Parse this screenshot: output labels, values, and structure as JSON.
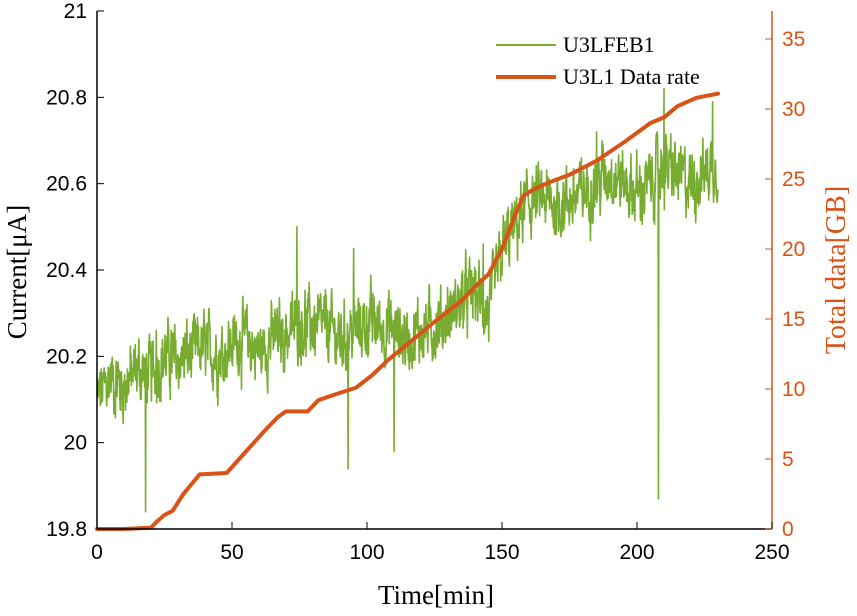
{
  "chart_data": {
    "type": "line",
    "x_axis": {
      "label": "Time[min]",
      "range": [
        0,
        250
      ],
      "ticks": [
        0,
        50,
        100,
        150,
        200,
        250
      ]
    },
    "y_axis_left": {
      "label": "Current[μA]",
      "range": [
        19.8,
        21
      ],
      "ticks": [
        "19.8",
        "20",
        "20.2",
        "20.4",
        "20.6",
        "20.8",
        "21"
      ],
      "color": "#000000"
    },
    "y_axis_right": {
      "label": "Total data[GB]",
      "range": [
        0,
        37
      ],
      "ticks": [
        0,
        5,
        10,
        15,
        20,
        25,
        30,
        35
      ],
      "color": "#D95319"
    },
    "grid": false,
    "legend_position": "top-right",
    "series": [
      {
        "name": "U3LFEB1",
        "axis": "left",
        "color": "#77AC30",
        "style": "noisy-line",
        "x": [
          0,
          5,
          10,
          15,
          20,
          25,
          30,
          35,
          40,
          45,
          50,
          55,
          60,
          65,
          70,
          75,
          80,
          85,
          90,
          95,
          100,
          105,
          110,
          115,
          120,
          125,
          130,
          135,
          140,
          145,
          150,
          155,
          160,
          165,
          170,
          175,
          180,
          185,
          190,
          195,
          200,
          205,
          210,
          215,
          220,
          225,
          230
        ],
        "y": [
          20.1,
          20.15,
          20.13,
          20.17,
          20.16,
          20.2,
          20.19,
          20.21,
          20.22,
          20.2,
          20.23,
          20.24,
          20.21,
          20.24,
          20.25,
          20.28,
          20.27,
          20.27,
          20.24,
          20.26,
          20.28,
          20.27,
          20.26,
          20.24,
          20.26,
          20.27,
          20.29,
          20.33,
          20.35,
          20.3,
          20.44,
          20.5,
          20.56,
          20.56,
          20.55,
          20.56,
          20.58,
          20.6,
          20.63,
          20.6,
          20.58,
          20.6,
          20.64,
          20.62,
          20.6,
          20.63,
          20.65
        ],
        "spikes": [
          {
            "x": 18,
            "y": 19.84
          },
          {
            "x": 22,
            "y": 20.26
          },
          {
            "x": 74,
            "y": 20.5
          },
          {
            "x": 93,
            "y": 19.94
          },
          {
            "x": 95,
            "y": 20.45
          },
          {
            "x": 110,
            "y": 19.98
          },
          {
            "x": 143,
            "y": 20.46
          },
          {
            "x": 185,
            "y": 20.72
          },
          {
            "x": 208,
            "y": 19.87
          },
          {
            "x": 210,
            "y": 20.82
          },
          {
            "x": 228,
            "y": 20.79
          }
        ]
      },
      {
        "name": "U3L1 Data rate",
        "axis": "right",
        "color": "#D95319",
        "x": [
          0,
          10,
          20,
          22,
          25,
          28,
          32,
          38,
          48,
          55,
          62,
          67,
          70,
          78,
          82,
          88,
          96,
          102,
          108,
          115,
          125,
          135,
          140,
          145,
          150,
          155,
          158,
          162,
          168,
          175,
          185,
          195,
          205,
          210,
          215,
          222,
          230
        ],
        "values": [
          0,
          0,
          0.1,
          0.5,
          1.0,
          1.3,
          2.5,
          3.9,
          4.0,
          5.5,
          7.0,
          8.0,
          8.4,
          8.4,
          9.2,
          9.6,
          10.1,
          11.0,
          12.1,
          13.2,
          14.8,
          16.3,
          17.3,
          18.2,
          20.0,
          22.5,
          23.8,
          24.3,
          24.8,
          25.3,
          26.3,
          27.6,
          29.0,
          29.4,
          30.2,
          30.8,
          31.1
        ]
      }
    ]
  }
}
